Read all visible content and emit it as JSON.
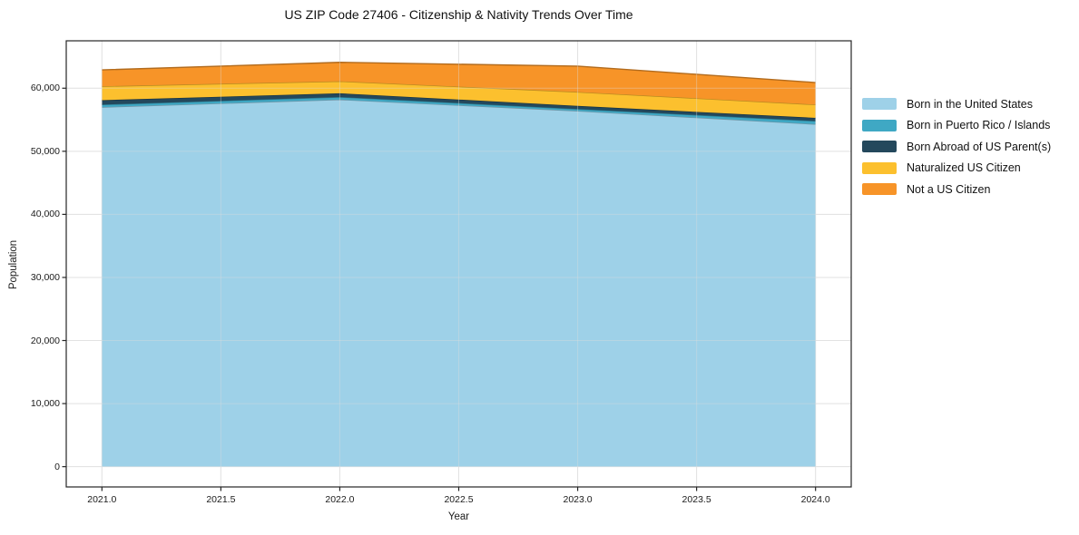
{
  "chart_data": {
    "type": "area",
    "title": "US ZIP Code 27406 - Citizenship & Nativity Trends Over Time",
    "xlabel": "Year",
    "ylabel": "Population",
    "x": [
      2021,
      2022,
      2023,
      2024
    ],
    "series": [
      {
        "name": "Born in the United States",
        "color": "#9ed1e8",
        "values": [
          57000,
          58200,
          56400,
          54300
        ]
      },
      {
        "name": "Born in Puerto Rico / Islands",
        "color": "#3fa8c4",
        "values": [
          400,
          400,
          300,
          500
        ]
      },
      {
        "name": "Born Abroad of US Parent(s)",
        "color": "#24485c",
        "values": [
          700,
          600,
          500,
          500
        ]
      },
      {
        "name": "Naturalized US Citizen",
        "color": "#fcc02e",
        "values": [
          2200,
          1900,
          2200,
          2100
        ]
      },
      {
        "name": "Not a US Citizen",
        "color": "#f79428",
        "values": [
          2600,
          3000,
          4100,
          3500
        ]
      }
    ],
    "totals": [
      62900,
      64100,
      63500,
      60900
    ],
    "xlim": [
      2020.85,
      2024.15
    ],
    "ylim": [
      -3215,
      67515
    ],
    "xtick_values": [
      2021.0,
      2021.5,
      2022.0,
      2022.5,
      2023.0,
      2023.5,
      2024.0
    ],
    "xtick_labels": [
      "2021.0",
      "2021.5",
      "2022.0",
      "2022.5",
      "2023.0",
      "2023.5",
      "2024.0"
    ],
    "ytick_values": [
      0,
      10000,
      20000,
      30000,
      40000,
      50000,
      60000
    ],
    "ytick_labels": [
      "0",
      "10,000",
      "20,000",
      "30,000",
      "40,000",
      "50,000",
      "60,000"
    ],
    "grid": true,
    "grid_color": "#e6e6e6",
    "spine_color": "#262626",
    "legend_position": "outside-right",
    "stacked": true
  }
}
